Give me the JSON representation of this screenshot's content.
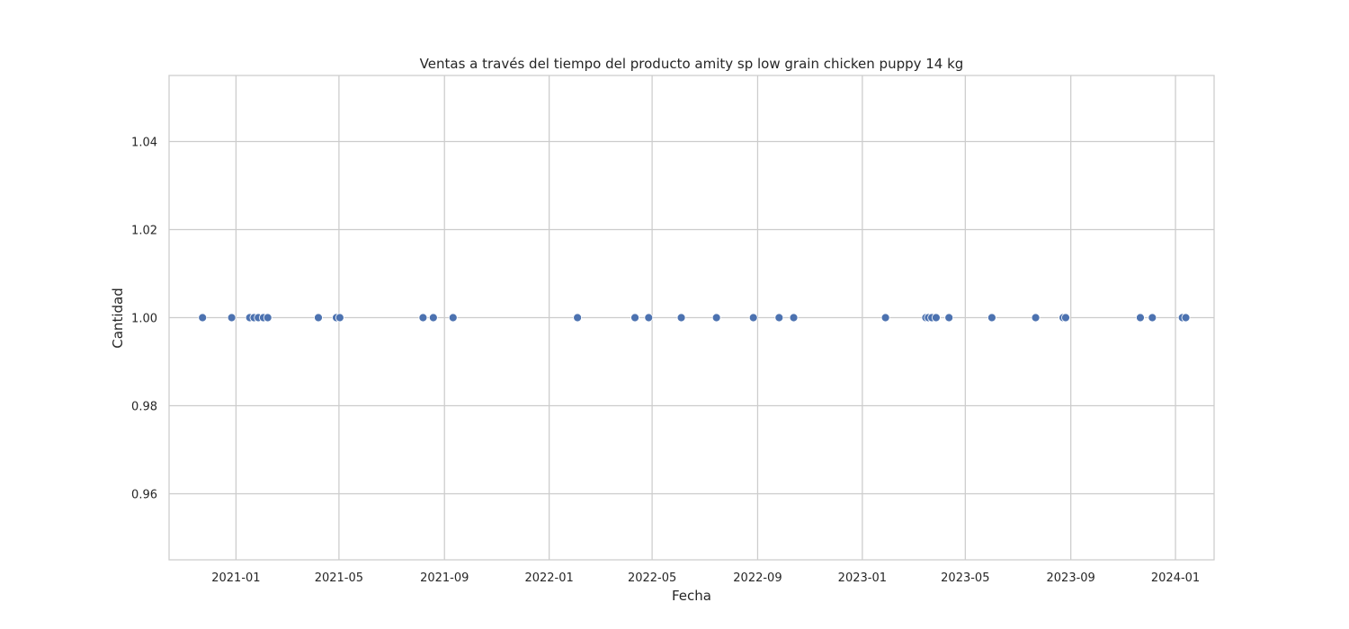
{
  "chart_data": {
    "type": "scatter",
    "title": "Ventas a través del tiempo del producto amity sp low grain chicken puppy 14 kg",
    "xlabel": "Fecha",
    "ylabel": "Cantidad",
    "x_type": "date",
    "xlim": [
      "2020-10-15",
      "2024-02-15"
    ],
    "ylim": [
      0.945,
      1.055
    ],
    "x_ticks": [
      "2021-01",
      "2021-05",
      "2021-09",
      "2022-01",
      "2022-05",
      "2022-09",
      "2023-01",
      "2023-05",
      "2023-09",
      "2024-01"
    ],
    "y_ticks": [
      "0.96",
      "0.98",
      "1.00",
      "1.02",
      "1.04"
    ],
    "grid": true,
    "series": [
      {
        "color": "#4c72b0",
        "points": [
          {
            "x": "2020-11-23",
            "y": 1
          },
          {
            "x": "2020-12-27",
            "y": 1
          },
          {
            "x": "2021-01-17",
            "y": 1
          },
          {
            "x": "2021-01-22",
            "y": 1
          },
          {
            "x": "2021-01-27",
            "y": 1
          },
          {
            "x": "2021-02-02",
            "y": 1
          },
          {
            "x": "2021-02-07",
            "y": 1
          },
          {
            "x": "2021-04-07",
            "y": 1
          },
          {
            "x": "2021-04-28",
            "y": 1
          },
          {
            "x": "2021-05-02",
            "y": 1
          },
          {
            "x": "2021-08-07",
            "y": 1
          },
          {
            "x": "2021-08-19",
            "y": 1
          },
          {
            "x": "2021-09-11",
            "y": 1
          },
          {
            "x": "2022-02-03",
            "y": 1
          },
          {
            "x": "2022-04-11",
            "y": 1
          },
          {
            "x": "2022-04-27",
            "y": 1
          },
          {
            "x": "2022-06-04",
            "y": 1
          },
          {
            "x": "2022-07-15",
            "y": 1
          },
          {
            "x": "2022-08-27",
            "y": 1
          },
          {
            "x": "2022-09-26",
            "y": 1
          },
          {
            "x": "2022-10-13",
            "y": 1
          },
          {
            "x": "2023-01-28",
            "y": 1
          },
          {
            "x": "2023-03-16",
            "y": 1
          },
          {
            "x": "2023-03-19",
            "y": 1
          },
          {
            "x": "2023-03-23",
            "y": 1
          },
          {
            "x": "2023-03-28",
            "y": 1
          },
          {
            "x": "2023-04-12",
            "y": 1
          },
          {
            "x": "2023-06-01",
            "y": 1
          },
          {
            "x": "2023-07-22",
            "y": 1
          },
          {
            "x": "2023-08-23",
            "y": 1
          },
          {
            "x": "2023-08-26",
            "y": 1
          },
          {
            "x": "2023-11-21",
            "y": 1
          },
          {
            "x": "2023-12-05",
            "y": 1
          },
          {
            "x": "2024-01-09",
            "y": 1
          },
          {
            "x": "2024-01-13",
            "y": 1
          }
        ]
      }
    ]
  }
}
